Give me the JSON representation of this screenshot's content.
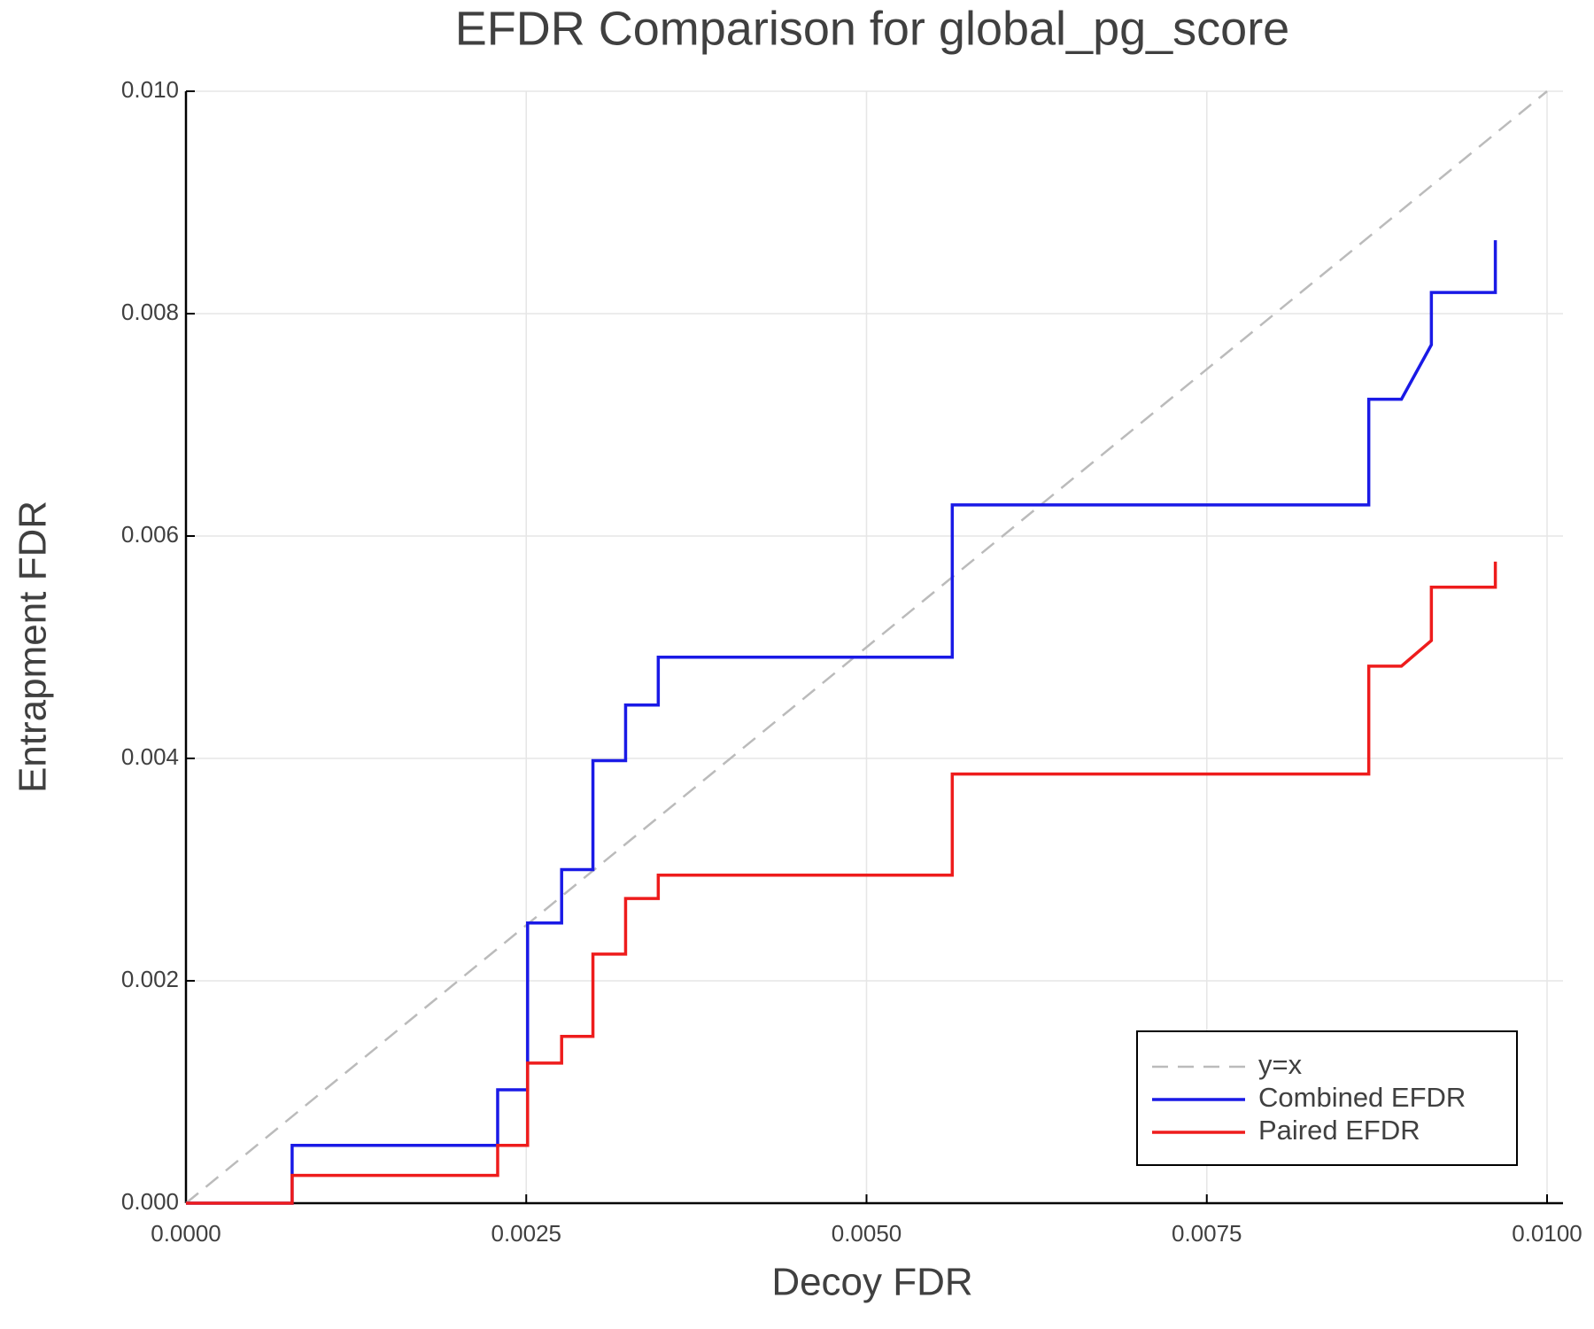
{
  "chart_data": {
    "type": "line",
    "title": "EFDR Comparison for global_pg_score",
    "x_label": "Decoy FDR",
    "y_label": "Entrapment FDR",
    "xlim": [
      0,
      0.01
    ],
    "ylim": [
      0,
      0.01
    ],
    "xticks": [
      {
        "value": 0,
        "label": "0.0000"
      },
      {
        "value": 0.0025,
        "label": "0.0025"
      },
      {
        "value": 0.005,
        "label": "0.0050"
      },
      {
        "value": 0.0075,
        "label": "0.0075"
      },
      {
        "value": 0.01,
        "label": "0.0100"
      }
    ],
    "yticks": [
      {
        "value": 0,
        "label": "0.000"
      },
      {
        "value": 0.002,
        "label": "0.002"
      },
      {
        "value": 0.004,
        "label": "0.004"
      },
      {
        "value": 0.006,
        "label": "0.006"
      },
      {
        "value": 0.008,
        "label": "0.008"
      },
      {
        "value": 0.01,
        "label": "0.010"
      }
    ],
    "grid": true,
    "legend": "lower right",
    "series": [
      {
        "name": "y=x",
        "color": "#bbbbbb",
        "dashed": true,
        "x": [
          0,
          0.01
        ],
        "values": [
          0,
          0.01
        ]
      },
      {
        "name": "Combined EFDR",
        "color": "#1a1ae6",
        "dashed": false,
        "x": [
          0,
          0.00078,
          0.00078,
          0.00229,
          0.00229,
          0.00251,
          0.00251,
          0.00276,
          0.00276,
          0.00299,
          0.00299,
          0.00323,
          0.00323,
          0.00347,
          0.00347,
          0.00563,
          0.00563,
          0.00869,
          0.00869,
          0.00893,
          0.00915,
          0.00915,
          0.00962,
          0.00962
        ],
        "values": [
          0,
          0,
          0.00052,
          0.00052,
          0.00102,
          0.00102,
          0.00252,
          0.00252,
          0.003,
          0.003,
          0.00398,
          0.00398,
          0.00448,
          0.00448,
          0.00491,
          0.00491,
          0.00628,
          0.00628,
          0.00723,
          0.00723,
          0.00772,
          0.00819,
          0.00819,
          0.00866
        ]
      },
      {
        "name": "Paired EFDR",
        "color": "#ee1c1c",
        "dashed": false,
        "x": [
          0,
          0.00078,
          0.00078,
          0.00229,
          0.00229,
          0.00251,
          0.00251,
          0.00276,
          0.00276,
          0.00299,
          0.00299,
          0.00323,
          0.00323,
          0.00347,
          0.00347,
          0.00563,
          0.00563,
          0.00869,
          0.00869,
          0.00893,
          0.00915,
          0.00915,
          0.00962,
          0.00962
        ],
        "values": [
          0,
          0,
          0.00025,
          0.00025,
          0.00052,
          0.00052,
          0.00126,
          0.00126,
          0.0015,
          0.0015,
          0.00224,
          0.00224,
          0.00274,
          0.00274,
          0.00295,
          0.00295,
          0.00386,
          0.00386,
          0.00483,
          0.00483,
          0.00506,
          0.00554,
          0.00554,
          0.00577
        ]
      }
    ]
  }
}
